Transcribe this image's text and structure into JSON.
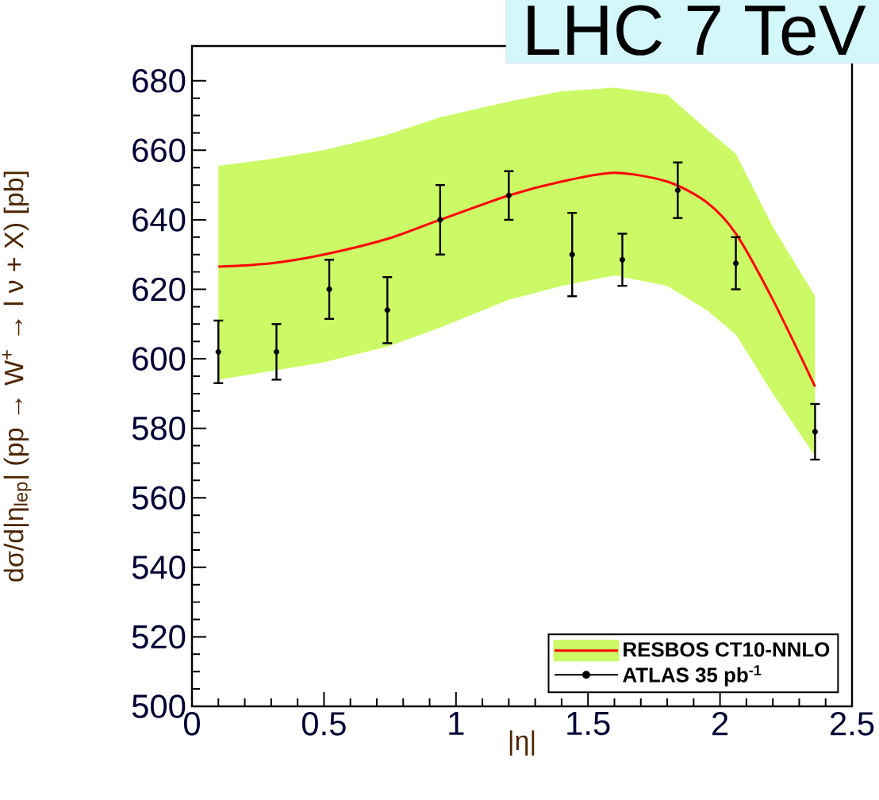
{
  "chart_data": {
    "type": "line",
    "xlabel": "|η|",
    "ylabel": "dσ/d|η$_{lep}$| (pp → W$^{+}$ → l ν + X) [pb]",
    "annotations": [
      "LHC 7 TeV"
    ],
    "xlim": [
      0,
      2.5
    ],
    "xticks": [
      0,
      0.5,
      1,
      1.5,
      2,
      2.5
    ],
    "ylim": [
      500,
      690
    ],
    "yticks": [
      500,
      520,
      540,
      560,
      580,
      600,
      620,
      640,
      660,
      680
    ],
    "grid": false,
    "legend": "bottom right",
    "series": [
      {
        "name": "RESBOS CT10-NNLO",
        "color": "#ff0000",
        "line_style": "solid",
        "x": [
          0.1,
          0.3,
          0.5,
          0.74,
          0.94,
          1.2,
          1.4,
          1.6,
          1.8,
          1.95,
          2.06,
          2.2,
          2.36
        ],
        "values": [
          626.5,
          627.5,
          630,
          634.5,
          640,
          647,
          651,
          653.5,
          651,
          645,
          636,
          617,
          592
        ],
        "lower": [
          594,
          596.5,
          599,
          603.5,
          609,
          617,
          621,
          624,
          621,
          614,
          607,
          590,
          572
        ],
        "upper": [
          655.5,
          657.5,
          660,
          664.5,
          669.5,
          674,
          677,
          678,
          676,
          666,
          659,
          638,
          618
        ]
      },
      {
        "name": "ATLAS 35 pb$^{-1}$",
        "type": "scatter",
        "color": "#000000",
        "marker": "circle",
        "x": [
          0.1,
          0.32,
          0.52,
          0.74,
          0.94,
          1.2,
          1.44,
          1.63,
          1.84,
          2.06,
          2.36
        ],
        "values": [
          602,
          602,
          620,
          614,
          640,
          647,
          630,
          628.5,
          648.5,
          627.5,
          579
        ],
        "errors": [
          9,
          8,
          8.5,
          9.5,
          10,
          7,
          12,
          7.5,
          8,
          7.5,
          8
        ]
      }
    ]
  }
}
